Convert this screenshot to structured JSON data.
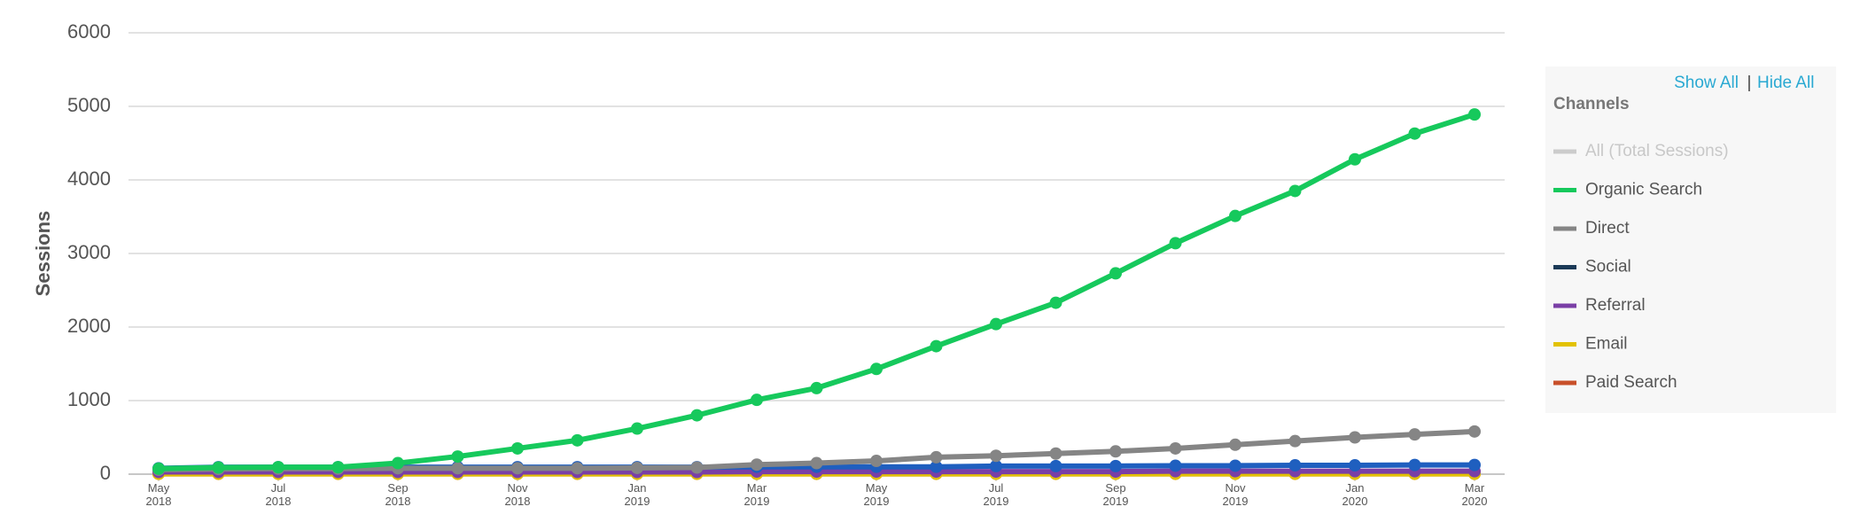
{
  "chart_data": {
    "type": "line",
    "y_axis_label": "Sessions",
    "legend_title": "Channels",
    "legend_links": [
      "Show All",
      "|",
      "Hide All"
    ],
    "categories": [
      "May 2018",
      null,
      "Jul 2018",
      null,
      "Sep 2018",
      null,
      "Nov 2018",
      null,
      "Jan 2019",
      null,
      "Mar 2019",
      null,
      "May 2019",
      null,
      "Jul 2019",
      null,
      "Sep 2019",
      null,
      "Nov 2019",
      null,
      "Jan 2020",
      null,
      "Mar 2020"
    ],
    "ylim": [
      0,
      6000
    ],
    "yticks": [
      0,
      1000,
      2000,
      3000,
      4000,
      5000,
      6000
    ],
    "grid": true,
    "series": [
      {
        "name": "All (Total Sessions)",
        "color": "#cccccc",
        "hidden": true
      },
      {
        "name": "Organic Search",
        "color": "#16c95c",
        "values": [
          75,
          90,
          95,
          95,
          150,
          240,
          350,
          460,
          620,
          800,
          1010,
          1170,
          1430,
          1740,
          2040,
          2330,
          2730,
          3140,
          3510,
          3850,
          4280,
          4630,
          4890
        ]
      },
      {
        "name": "Direct",
        "color": "#858585",
        "values": [
          60,
          70,
          75,
          75,
          80,
          80,
          80,
          80,
          85,
          90,
          130,
          150,
          180,
          230,
          250,
          280,
          310,
          350,
          400,
          450,
          500,
          540,
          580
        ]
      },
      {
        "name": "Social",
        "color": "#1f5fbf",
        "legend_color": "#1b3a57",
        "values": [
          80,
          95,
          95,
          95,
          95,
          95,
          95,
          95,
          95,
          95,
          100,
          100,
          100,
          100,
          110,
          110,
          110,
          115,
          115,
          120,
          120,
          125,
          125
        ]
      },
      {
        "name": "Referral",
        "color": "#7a3fa6",
        "values": [
          30,
          30,
          30,
          30,
          30,
          30,
          30,
          30,
          30,
          30,
          35,
          35,
          35,
          35,
          35,
          35,
          35,
          40,
          40,
          40,
          40,
          40,
          40
        ]
      },
      {
        "name": "Email",
        "color": "#e2c200",
        "values": [
          5,
          5,
          5,
          5,
          5,
          5,
          5,
          5,
          5,
          5,
          5,
          5,
          5,
          5,
          5,
          5,
          5,
          5,
          5,
          5,
          5,
          5,
          5
        ]
      },
      {
        "name": "Paid Search",
        "color": "#c8502a",
        "values": [
          5,
          5,
          5,
          5,
          5,
          5,
          5,
          5,
          5,
          5,
          5,
          5,
          5,
          5,
          5,
          5,
          5,
          5,
          5,
          5,
          5,
          5,
          5
        ]
      }
    ]
  }
}
